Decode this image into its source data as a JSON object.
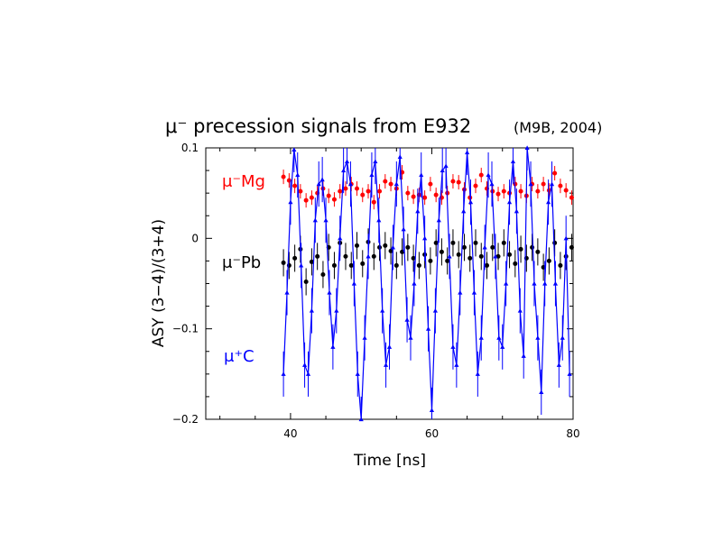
{
  "chart_data": {
    "type": "scatter",
    "title": "μ⁻ precession signals from E932",
    "subtitle": "(M9B, 2004)",
    "xlabel": "Time [ns]",
    "ylabel": "ASY (3−4)/(3+4)",
    "xlim": [
      28,
      80
    ],
    "ylim": [
      -0.2,
      0.1
    ],
    "x_ticks": [
      "40",
      "60",
      "80"
    ],
    "y_ticks": [
      "0.1",
      "0",
      "−0.1",
      "−0.2"
    ],
    "grid": false,
    "legend": "in-plot labels, left",
    "series": [
      {
        "name": "μ⁻Mg",
        "color": "#ff0000",
        "marker": "circle",
        "connected": false,
        "points": [
          [
            39.0,
            0.068
          ],
          [
            39.8,
            0.064
          ],
          [
            40.6,
            0.058
          ],
          [
            41.4,
            0.052
          ],
          [
            42.2,
            0.042
          ],
          [
            43.0,
            0.045
          ],
          [
            43.8,
            0.05
          ],
          [
            44.6,
            0.055
          ],
          [
            45.4,
            0.047
          ],
          [
            46.2,
            0.043
          ],
          [
            47.0,
            0.052
          ],
          [
            47.8,
            0.055
          ],
          [
            48.6,
            0.06
          ],
          [
            49.4,
            0.055
          ],
          [
            50.2,
            0.048
          ],
          [
            51.0,
            0.052
          ],
          [
            51.8,
            0.04
          ],
          [
            52.6,
            0.052
          ],
          [
            53.4,
            0.063
          ],
          [
            54.2,
            0.06
          ],
          [
            55.0,
            0.055
          ],
          [
            55.8,
            0.073
          ],
          [
            56.6,
            0.05
          ],
          [
            57.4,
            0.046
          ],
          [
            58.2,
            0.048
          ],
          [
            59.0,
            0.045
          ],
          [
            59.8,
            0.06
          ],
          [
            60.6,
            0.048
          ],
          [
            61.4,
            0.045
          ],
          [
            62.2,
            0.05
          ],
          [
            63.0,
            0.063
          ],
          [
            63.8,
            0.062
          ],
          [
            64.6,
            0.054
          ],
          [
            65.4,
            0.045
          ],
          [
            66.2,
            0.058
          ],
          [
            67.0,
            0.07
          ],
          [
            67.8,
            0.055
          ],
          [
            68.6,
            0.052
          ],
          [
            69.4,
            0.049
          ],
          [
            70.2,
            0.052
          ],
          [
            71.0,
            0.05
          ],
          [
            71.8,
            0.06
          ],
          [
            72.6,
            0.052
          ],
          [
            73.4,
            0.047
          ],
          [
            74.2,
            0.06
          ],
          [
            75.0,
            0.052
          ],
          [
            75.8,
            0.06
          ],
          [
            76.6,
            0.053
          ],
          [
            77.4,
            0.072
          ],
          [
            78.2,
            0.058
          ],
          [
            79.0,
            0.053
          ],
          [
            79.8,
            0.045
          ]
        ],
        "error": 0.008
      },
      {
        "name": "μ⁻Pb",
        "color": "#000000",
        "marker": "circle",
        "connected": false,
        "points": [
          [
            39.0,
            -0.027
          ],
          [
            39.8,
            -0.03
          ],
          [
            40.6,
            -0.022
          ],
          [
            41.4,
            -0.012
          ],
          [
            42.2,
            -0.048
          ],
          [
            43.0,
            -0.026
          ],
          [
            43.8,
            -0.02
          ],
          [
            44.6,
            -0.04
          ],
          [
            45.4,
            -0.01
          ],
          [
            46.2,
            -0.03
          ],
          [
            47.0,
            -0.005
          ],
          [
            47.8,
            -0.02
          ],
          [
            48.6,
            -0.03
          ],
          [
            49.4,
            -0.008
          ],
          [
            50.2,
            -0.028
          ],
          [
            51.0,
            -0.004
          ],
          [
            51.8,
            -0.02
          ],
          [
            52.6,
            -0.01
          ],
          [
            53.4,
            -0.008
          ],
          [
            54.2,
            -0.014
          ],
          [
            55.0,
            -0.03
          ],
          [
            55.8,
            -0.015
          ],
          [
            56.6,
            -0.01
          ],
          [
            57.4,
            -0.022
          ],
          [
            58.2,
            -0.03
          ],
          [
            59.0,
            -0.018
          ],
          [
            59.8,
            -0.025
          ],
          [
            60.6,
            -0.005
          ],
          [
            61.4,
            -0.015
          ],
          [
            62.2,
            -0.025
          ],
          [
            63.0,
            -0.005
          ],
          [
            63.8,
            -0.018
          ],
          [
            64.6,
            -0.01
          ],
          [
            65.4,
            -0.022
          ],
          [
            66.2,
            -0.005
          ],
          [
            67.0,
            -0.02
          ],
          [
            67.8,
            -0.03
          ],
          [
            68.6,
            -0.01
          ],
          [
            69.4,
            -0.02
          ],
          [
            70.2,
            -0.005
          ],
          [
            71.0,
            -0.018
          ],
          [
            71.8,
            -0.028
          ],
          [
            72.6,
            -0.012
          ],
          [
            73.4,
            -0.022
          ],
          [
            74.2,
            -0.01
          ],
          [
            75.0,
            -0.015
          ],
          [
            75.8,
            -0.032
          ],
          [
            76.6,
            -0.025
          ],
          [
            77.4,
            -0.005
          ],
          [
            78.2,
            -0.03
          ],
          [
            79.0,
            -0.02
          ],
          [
            79.8,
            -0.01
          ]
        ],
        "error": 0.015
      },
      {
        "name": "μ⁺C",
        "color": "#0000ff",
        "marker": "triangle",
        "connected": true,
        "points": [
          [
            39.0,
            -0.15
          ],
          [
            39.5,
            -0.06
          ],
          [
            40.0,
            0.04
          ],
          [
            40.5,
            0.098
          ],
          [
            41.0,
            0.07
          ],
          [
            41.5,
            -0.03
          ],
          [
            42.0,
            -0.14
          ],
          [
            42.5,
            -0.15
          ],
          [
            43.0,
            -0.08
          ],
          [
            43.5,
            0.02
          ],
          [
            44.0,
            0.06
          ],
          [
            44.5,
            0.065
          ],
          [
            45.0,
            0.02
          ],
          [
            45.5,
            -0.06
          ],
          [
            46.0,
            -0.12
          ],
          [
            46.5,
            -0.08
          ],
          [
            47.0,
            0.0
          ],
          [
            47.5,
            0.075
          ],
          [
            48.0,
            0.085
          ],
          [
            48.5,
            0.06
          ],
          [
            49.0,
            -0.05
          ],
          [
            49.5,
            -0.15
          ],
          [
            50.0,
            -0.2
          ],
          [
            50.5,
            -0.11
          ],
          [
            51.0,
            -0.02
          ],
          [
            51.5,
            0.07
          ],
          [
            52.0,
            0.085
          ],
          [
            52.5,
            0.02
          ],
          [
            53.0,
            -0.08
          ],
          [
            53.5,
            -0.14
          ],
          [
            54.0,
            -0.12
          ],
          [
            54.5,
            -0.01
          ],
          [
            55.0,
            0.06
          ],
          [
            55.5,
            0.09
          ],
          [
            56.0,
            0.01
          ],
          [
            56.5,
            -0.09
          ],
          [
            57.0,
            -0.11
          ],
          [
            57.5,
            -0.05
          ],
          [
            58.0,
            0.03
          ],
          [
            58.5,
            0.07
          ],
          [
            59.0,
            0.0
          ],
          [
            59.5,
            -0.1
          ],
          [
            60.0,
            -0.19
          ],
          [
            60.5,
            -0.08
          ],
          [
            61.0,
            0.02
          ],
          [
            61.5,
            0.075
          ],
          [
            62.0,
            0.08
          ],
          [
            62.5,
            -0.02
          ],
          [
            63.0,
            -0.12
          ],
          [
            63.5,
            -0.14
          ],
          [
            64.0,
            -0.06
          ],
          [
            64.5,
            0.03
          ],
          [
            65.0,
            0.095
          ],
          [
            65.5,
            0.04
          ],
          [
            66.0,
            -0.06
          ],
          [
            66.5,
            -0.15
          ],
          [
            67.0,
            -0.11
          ],
          [
            67.5,
            -0.01
          ],
          [
            68.0,
            0.07
          ],
          [
            68.5,
            0.06
          ],
          [
            69.0,
            -0.02
          ],
          [
            69.5,
            -0.11
          ],
          [
            70.0,
            -0.12
          ],
          [
            70.5,
            -0.05
          ],
          [
            71.0,
            0.04
          ],
          [
            71.5,
            0.085
          ],
          [
            72.0,
            0.03
          ],
          [
            72.5,
            -0.08
          ],
          [
            73.0,
            -0.13
          ],
          [
            73.5,
            0.1
          ],
          [
            74.0,
            0.06
          ],
          [
            74.5,
            -0.05
          ],
          [
            75.0,
            -0.11
          ],
          [
            75.5,
            -0.17
          ],
          [
            76.0,
            -0.05
          ],
          [
            76.5,
            0.04
          ],
          [
            77.0,
            0.06
          ],
          [
            77.5,
            -0.05
          ],
          [
            78.0,
            -0.14
          ],
          [
            78.5,
            -0.11
          ],
          [
            79.0,
            0.0
          ],
          [
            79.5,
            -0.15
          ]
        ],
        "error": 0.025
      }
    ]
  }
}
